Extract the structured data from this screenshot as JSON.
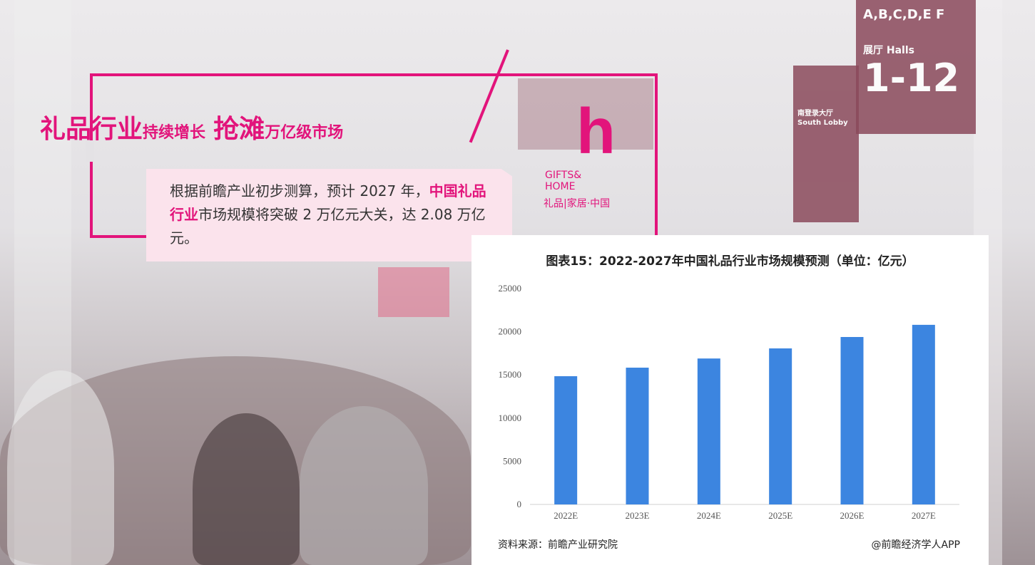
{
  "headline": {
    "part1": "礼品行业",
    "part2": "持续增长",
    "part3": "抢滩",
    "part4": "万亿级市场"
  },
  "paragraph": {
    "text1": "根据前瞻产业初步测算，预计 2027 年，",
    "highlight": "中国礼品行业",
    "text2": "市场规模将突破 2 万亿元大关，达 2.08 万亿元。"
  },
  "logo": {
    "line1": "GIFTS&",
    "line2": "HOME",
    "line3": "礼品|家居·中国"
  },
  "background_signs": {
    "sign1": "A,B,C,D,E F",
    "sign2": "展厅 Halls",
    "sign3": "1-12",
    "sign4": "南登录大厅 South Lobby"
  },
  "colors": {
    "accent": "#e2147b",
    "bar": "#3c85e0",
    "text_box": "#fbe3ec"
  },
  "chart_data": {
    "type": "bar",
    "title": "图表15：2022-2027年中国礼品行业市场规模预测（单位：亿元）",
    "categories": [
      "2022E",
      "2023E",
      "2024E",
      "2025E",
      "2026E",
      "2027E"
    ],
    "values": [
      14850,
      15840,
      16900,
      18070,
      19390,
      20800
    ],
    "ylim": [
      0,
      25000
    ],
    "yticks": [
      0,
      5000,
      10000,
      15000,
      20000,
      25000
    ],
    "grid": false,
    "source": "资料来源：前瞻产业研究院",
    "credit": "@前瞻经济学人APP",
    "watermark": "前瞻产业研究院"
  }
}
